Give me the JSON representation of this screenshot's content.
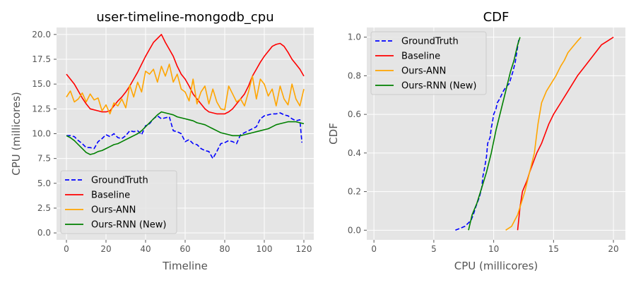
{
  "chart_data": [
    {
      "type": "line",
      "title": "user-timeline-mongodb_cpu",
      "xlabel": "Timeline",
      "ylabel": "CPU (millicores)",
      "xlim": [
        -5,
        125
      ],
      "ylim": [
        -0.7,
        20.7
      ],
      "xticks": [
        0,
        20,
        40,
        60,
        80,
        100,
        120
      ],
      "yticks": [
        0.0,
        2.5,
        5.0,
        7.5,
        10.0,
        12.5,
        15.0,
        17.5,
        20.0
      ],
      "ytick_labels": [
        "0.0",
        "2.5",
        "5.0",
        "7.5",
        "10.0",
        "12.5",
        "15.0",
        "17.5",
        "20.0"
      ],
      "grid": true,
      "background": "#e5e5e5",
      "legend_position": "lower-left",
      "series": [
        {
          "name": "GroundTruth",
          "color": "#0000ff",
          "dash": "dashed",
          "x": [
            0,
            2,
            4,
            6,
            8,
            10,
            12,
            14,
            16,
            18,
            20,
            22,
            24,
            26,
            28,
            30,
            32,
            34,
            36,
            38,
            40,
            42,
            44,
            46,
            48,
            50,
            52,
            54,
            56,
            58,
            60,
            62,
            64,
            66,
            68,
            70,
            72,
            74,
            76,
            78,
            80,
            82,
            84,
            86,
            88,
            90,
            92,
            94,
            96,
            98,
            100,
            102,
            104,
            106,
            108,
            110,
            112,
            114,
            116,
            118,
            119
          ],
          "y": [
            9.8,
            9.8,
            9.7,
            9.3,
            9.0,
            8.6,
            8.6,
            8.5,
            9.2,
            9.5,
            9.9,
            9.7,
            10.0,
            9.6,
            9.5,
            9.8,
            10.3,
            10.2,
            10.3,
            9.9,
            10.8,
            11.0,
            11.5,
            11.8,
            11.5,
            11.6,
            11.7,
            10.3,
            10.2,
            10.0,
            9.2,
            9.4,
            9.0,
            8.9,
            8.5,
            8.3,
            8.2,
            7.5,
            8.2,
            9.0,
            9.1,
            9.3,
            9.2,
            9.0,
            9.9,
            10.1,
            10.3,
            10.5,
            10.7,
            11.5,
            11.8,
            11.9,
            12.0,
            12.0,
            12.1,
            11.9,
            11.8,
            11.5,
            11.3,
            11.4,
            9.1
          ]
        },
        {
          "name": "Baseline",
          "color": "#ff0000",
          "dash": "solid",
          "x": [
            0,
            2,
            4,
            6,
            8,
            10,
            12,
            14,
            16,
            18,
            20,
            22,
            24,
            26,
            28,
            30,
            32,
            34,
            36,
            38,
            40,
            42,
            44,
            46,
            48,
            50,
            52,
            54,
            56,
            58,
            60,
            62,
            64,
            66,
            68,
            70,
            72,
            74,
            76,
            78,
            80,
            82,
            84,
            86,
            88,
            90,
            92,
            94,
            96,
            98,
            100,
            102,
            104,
            106,
            108,
            110,
            112,
            114,
            116,
            118,
            120
          ],
          "y": [
            16.0,
            15.5,
            15.0,
            14.3,
            13.6,
            13.0,
            12.5,
            12.4,
            12.3,
            12.2,
            12.2,
            12.3,
            12.8,
            13.3,
            13.7,
            14.2,
            14.8,
            15.5,
            16.2,
            17.0,
            17.8,
            18.5,
            19.2,
            19.6,
            20.0,
            19.2,
            18.5,
            17.8,
            16.8,
            16.0,
            15.5,
            14.8,
            14.0,
            13.5,
            13.0,
            12.5,
            12.2,
            12.1,
            12.0,
            12.0,
            12.0,
            12.2,
            12.5,
            13.0,
            13.5,
            14.0,
            14.8,
            15.8,
            16.5,
            17.2,
            17.8,
            18.3,
            18.8,
            19.0,
            19.1,
            18.8,
            18.2,
            17.5,
            17.0,
            16.5,
            15.8
          ]
        },
        {
          "name": "Ours-ANN",
          "color": "#ffa500",
          "dash": "solid",
          "x": [
            0,
            2,
            4,
            6,
            8,
            10,
            12,
            14,
            16,
            18,
            20,
            22,
            24,
            26,
            28,
            30,
            32,
            34,
            36,
            38,
            40,
            42,
            44,
            46,
            48,
            50,
            52,
            54,
            56,
            58,
            60,
            62,
            64,
            66,
            68,
            70,
            72,
            74,
            76,
            78,
            80,
            82,
            84,
            86,
            88,
            90,
            92,
            94,
            96,
            98,
            100,
            102,
            104,
            106,
            108,
            110,
            112,
            114,
            116,
            118,
            120
          ],
          "y": [
            13.7,
            14.3,
            13.2,
            13.5,
            14.1,
            13.2,
            14.0,
            13.4,
            13.6,
            12.3,
            12.9,
            12.0,
            13.1,
            12.8,
            13.5,
            12.6,
            14.9,
            13.7,
            15.2,
            14.2,
            16.3,
            16.0,
            16.5,
            15.2,
            16.8,
            15.8,
            17.0,
            15.2,
            16.0,
            14.5,
            14.2,
            13.3,
            15.5,
            13.0,
            14.2,
            14.8,
            13.0,
            14.5,
            13.2,
            12.5,
            12.4,
            14.8,
            14.0,
            13.2,
            13.5,
            12.8,
            14.2,
            15.8,
            13.5,
            15.5,
            15.0,
            13.8,
            14.5,
            12.8,
            14.8,
            13.5,
            12.9,
            15.0,
            13.5,
            12.8,
            14.5
          ]
        },
        {
          "name": "Ours-RNN (New)",
          "color": "#008000",
          "dash": "solid",
          "x": [
            0,
            2,
            4,
            6,
            8,
            10,
            12,
            14,
            16,
            18,
            20,
            22,
            24,
            26,
            28,
            30,
            32,
            34,
            36,
            38,
            40,
            42,
            44,
            46,
            48,
            50,
            52,
            54,
            56,
            58,
            60,
            62,
            64,
            66,
            68,
            70,
            72,
            74,
            76,
            78,
            80,
            82,
            84,
            86,
            88,
            90,
            92,
            94,
            96,
            98,
            100,
            102,
            104,
            106,
            108,
            110,
            112,
            114,
            116,
            118,
            120
          ],
          "y": [
            9.8,
            9.6,
            9.3,
            8.9,
            8.5,
            8.1,
            7.9,
            8.0,
            8.2,
            8.3,
            8.5,
            8.7,
            8.9,
            9.0,
            9.2,
            9.4,
            9.6,
            9.8,
            10.0,
            10.3,
            10.7,
            11.1,
            11.5,
            11.9,
            12.2,
            12.1,
            12.0,
            11.9,
            11.7,
            11.6,
            11.5,
            11.4,
            11.3,
            11.1,
            11.0,
            10.9,
            10.7,
            10.5,
            10.3,
            10.1,
            10.0,
            9.9,
            9.8,
            9.8,
            9.8,
            9.9,
            10.0,
            10.1,
            10.2,
            10.3,
            10.4,
            10.5,
            10.7,
            10.9,
            11.0,
            11.1,
            11.2,
            11.2,
            11.2,
            11.1,
            11.0
          ]
        }
      ]
    },
    {
      "type": "line",
      "title": "CDF",
      "xlabel": "CPU (millicores)",
      "ylabel": "CDF",
      "xlim": [
        -0.6,
        21.0
      ],
      "ylim": [
        -0.05,
        1.05
      ],
      "xticks": [
        0,
        5,
        10,
        15,
        20
      ],
      "yticks": [
        0.0,
        0.2,
        0.4,
        0.6,
        0.8,
        1.0
      ],
      "ytick_labels": [
        "0.0",
        "0.2",
        "0.4",
        "0.6",
        "0.8",
        "1.0"
      ],
      "grid": true,
      "background": "#e5e5e5",
      "legend_position": "upper-left",
      "series": [
        {
          "name": "GroundTruth",
          "color": "#0000ff",
          "dash": "dashed",
          "x": [
            6.8,
            7.2,
            7.6,
            8.1,
            8.3,
            8.5,
            8.8,
            9.0,
            9.1,
            9.2,
            9.4,
            9.5,
            9.7,
            9.8,
            9.9,
            10.0,
            10.2,
            10.3,
            10.5,
            10.8,
            11.0,
            11.3,
            11.5,
            11.6,
            11.8,
            11.9,
            12.0,
            12.1
          ],
          "y": [
            0.0,
            0.01,
            0.02,
            0.05,
            0.08,
            0.12,
            0.17,
            0.22,
            0.28,
            0.31,
            0.38,
            0.45,
            0.48,
            0.53,
            0.56,
            0.6,
            0.63,
            0.66,
            0.68,
            0.72,
            0.74,
            0.76,
            0.8,
            0.82,
            0.87,
            0.91,
            0.95,
            0.99
          ]
        },
        {
          "name": "Baseline",
          "color": "#ff0000",
          "dash": "solid",
          "x": [
            12.0,
            12.2,
            12.4,
            12.8,
            13.0,
            13.3,
            13.6,
            14.0,
            14.3,
            14.6,
            15.0,
            15.5,
            16.0,
            16.5,
            17.0,
            17.5,
            18.0,
            18.5,
            19.0,
            19.5,
            20.0
          ],
          "y": [
            0.0,
            0.12,
            0.2,
            0.26,
            0.3,
            0.35,
            0.4,
            0.45,
            0.5,
            0.55,
            0.6,
            0.65,
            0.7,
            0.75,
            0.8,
            0.84,
            0.88,
            0.92,
            0.96,
            0.98,
            1.0
          ]
        },
        {
          "name": "Ours-ANN",
          "color": "#ffa500",
          "dash": "solid",
          "x": [
            11.0,
            11.5,
            12.0,
            12.6,
            13.0,
            13.4,
            13.7,
            14.0,
            14.4,
            14.8,
            15.2,
            15.6,
            15.9,
            16.2,
            16.6,
            17.0,
            17.3
          ],
          "y": [
            0.0,
            0.02,
            0.08,
            0.2,
            0.3,
            0.4,
            0.55,
            0.66,
            0.72,
            0.76,
            0.8,
            0.85,
            0.88,
            0.92,
            0.95,
            0.98,
            1.0
          ]
        },
        {
          "name": "Ours-RNN (New)",
          "color": "#008000",
          "dash": "solid",
          "x": [
            7.9,
            8.2,
            8.6,
            9.0,
            9.4,
            9.8,
            10.2,
            10.6,
            11.0,
            11.4,
            11.7,
            12.0,
            12.2
          ],
          "y": [
            0.0,
            0.08,
            0.14,
            0.22,
            0.3,
            0.4,
            0.52,
            0.62,
            0.72,
            0.82,
            0.88,
            0.96,
            1.0
          ]
        }
      ]
    }
  ]
}
